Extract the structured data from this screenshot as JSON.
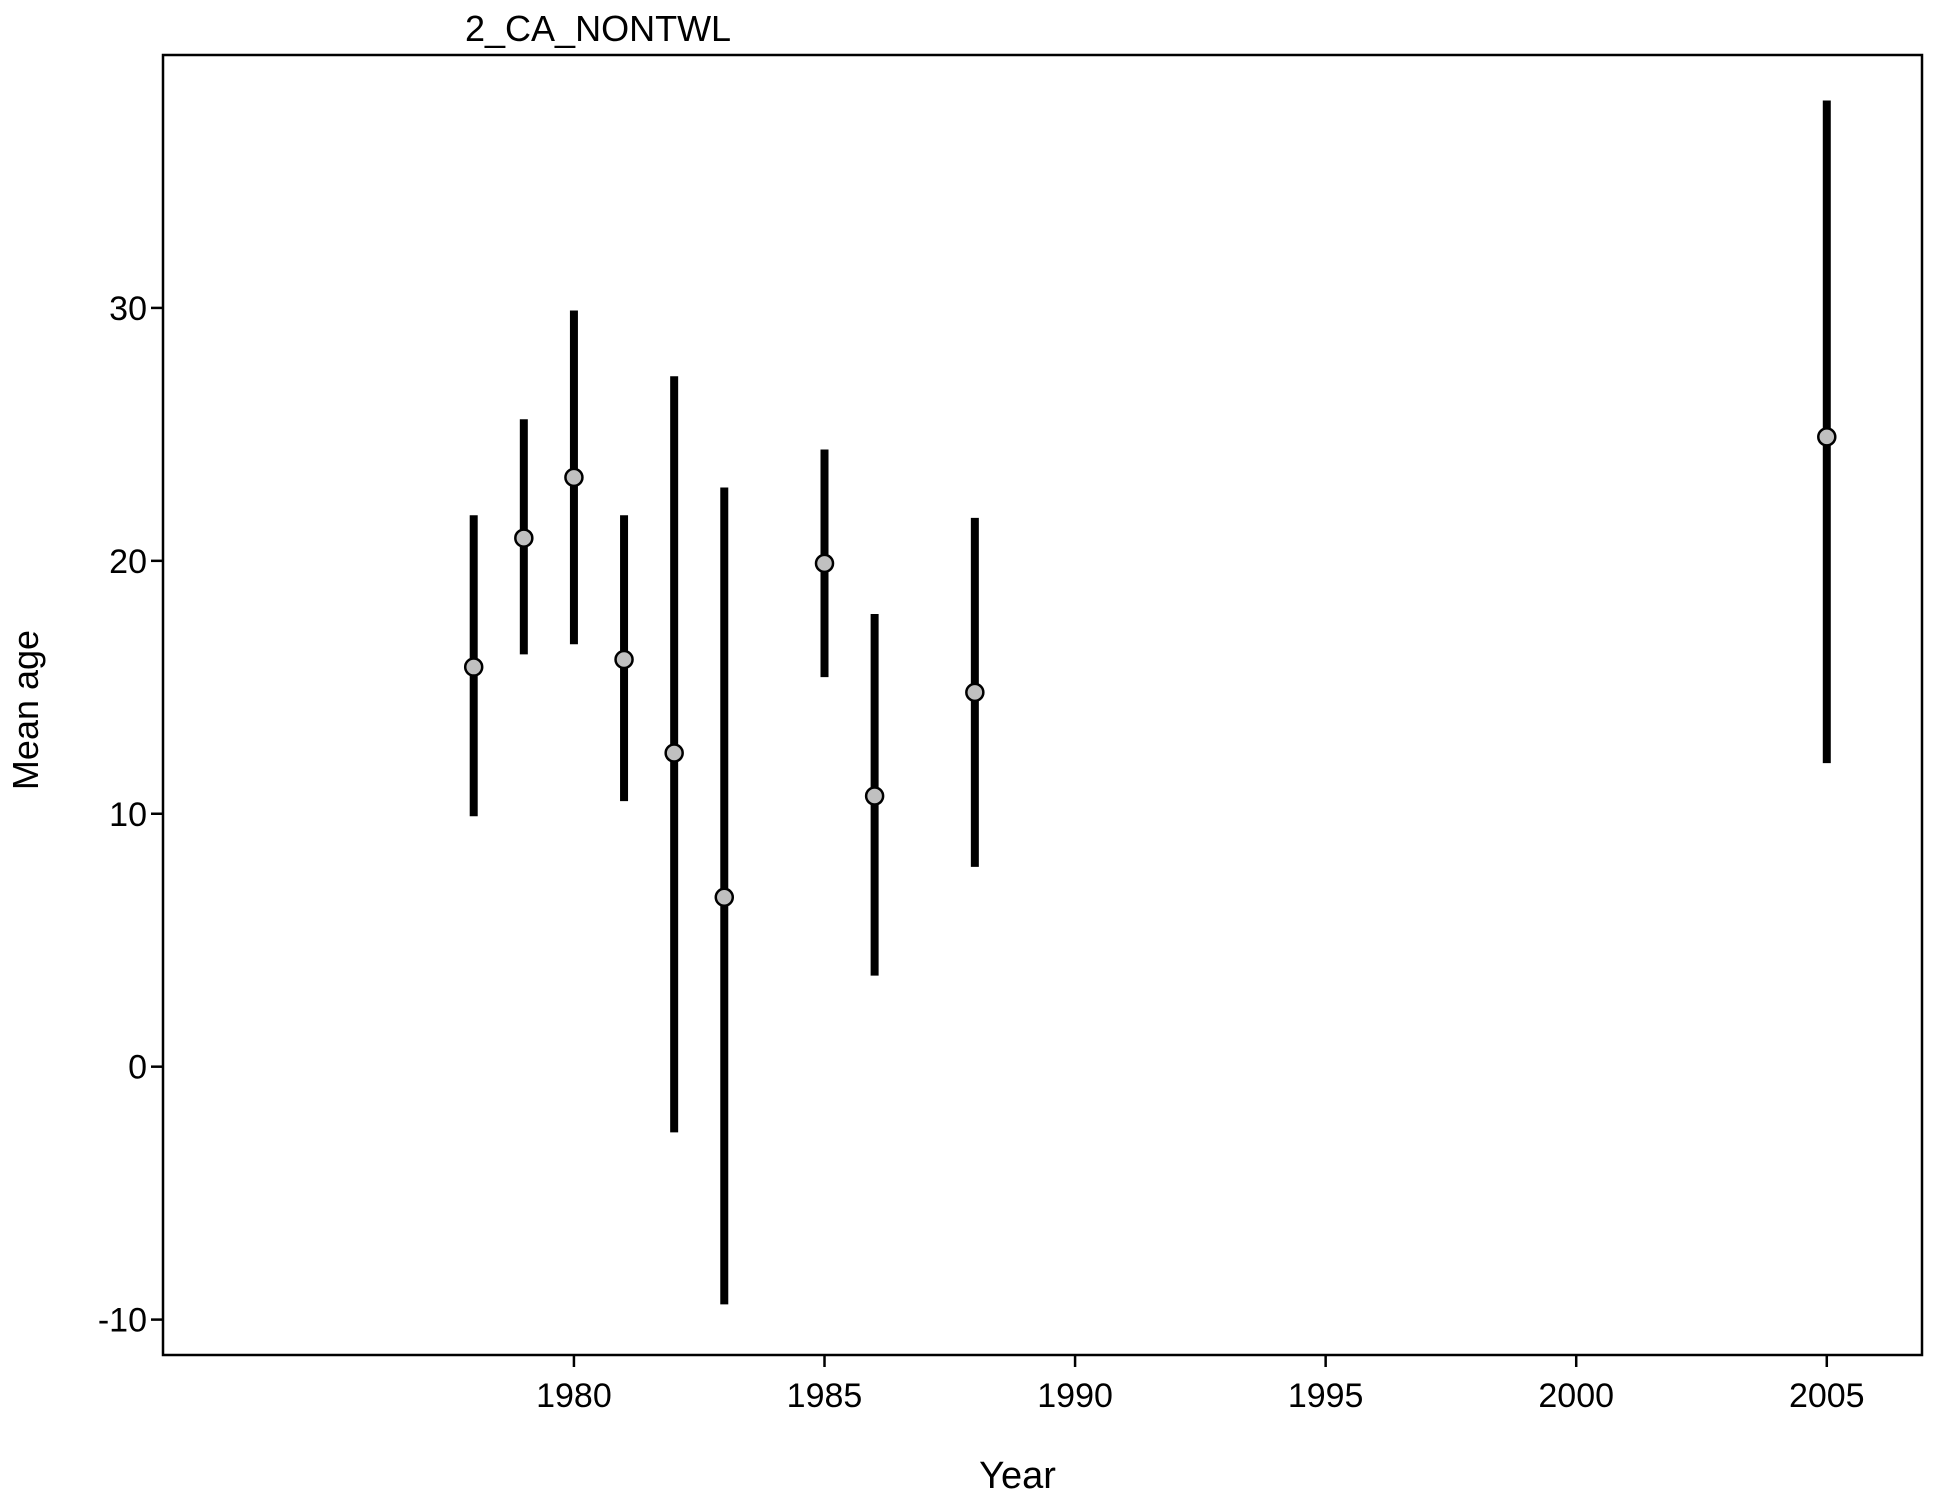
{
  "chart_data": {
    "type": "scatter",
    "title": "2_CA_NONTWL",
    "xlabel": "Year",
    "ylabel": "Mean age",
    "xlim": [
      1971.8,
      2006.9
    ],
    "ylim": [
      -11.4,
      40
    ],
    "xticks": [
      1980,
      1985,
      1990,
      1995,
      2000,
      2005
    ],
    "yticks": [
      -10,
      0,
      10,
      20,
      30
    ],
    "grid": false,
    "colors": {
      "bar": "#000000",
      "point_fill": "#c0c0c0",
      "point_stroke": "#000000"
    },
    "points": [
      {
        "x": 1978,
        "y": 15.8,
        "lower": 9.9,
        "upper": 21.8
      },
      {
        "x": 1979,
        "y": 20.9,
        "lower": 16.3,
        "upper": 25.6
      },
      {
        "x": 1980,
        "y": 23.3,
        "lower": 16.7,
        "upper": 29.9
      },
      {
        "x": 1981,
        "y": 16.1,
        "lower": 10.5,
        "upper": 21.8
      },
      {
        "x": 1982,
        "y": 12.4,
        "lower": -2.6,
        "upper": 27.3
      },
      {
        "x": 1983,
        "y": 6.7,
        "lower": -9.4,
        "upper": 22.9
      },
      {
        "x": 1985,
        "y": 19.9,
        "lower": 15.4,
        "upper": 24.4
      },
      {
        "x": 1986,
        "y": 10.7,
        "lower": 3.6,
        "upper": 17.9
      },
      {
        "x": 1988,
        "y": 14.8,
        "lower": 7.9,
        "upper": 21.7
      },
      {
        "x": 2005,
        "y": 24.9,
        "lower": 12.0,
        "upper": 38.2
      }
    ]
  }
}
